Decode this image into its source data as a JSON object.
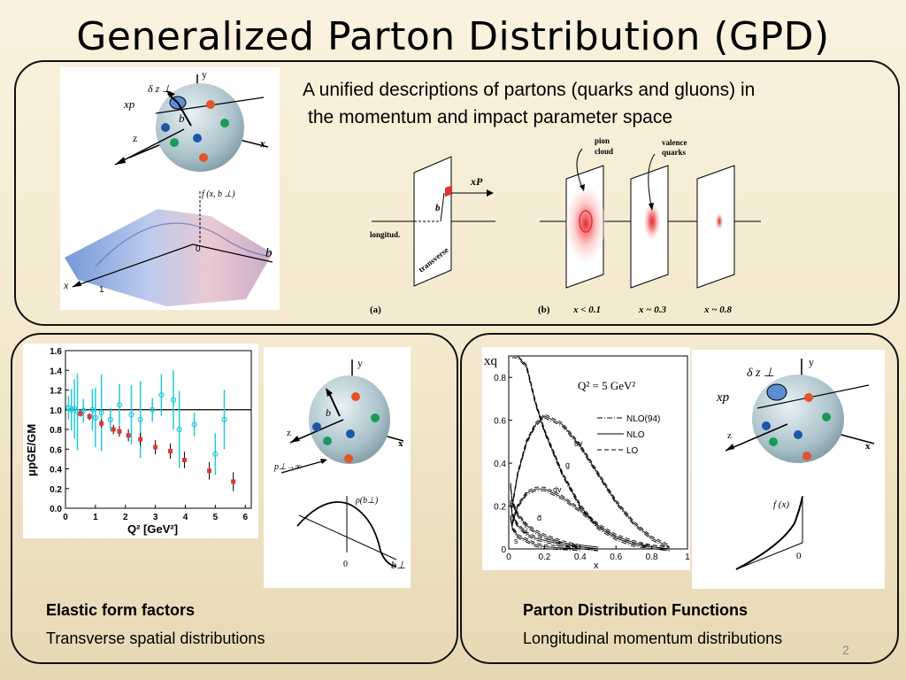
{
  "slide": {
    "title": "Generalized Parton Distribution (GPD)",
    "subtitle_line1": "A unified descriptions of partons (quarks and gluons) in",
    "subtitle_line2": "the momentum and impact parameter space",
    "page_number": "2"
  },
  "top_figure": {
    "sphere_labels": {
      "dz": "δ z ⊥",
      "xp": "xp",
      "b": "b",
      "z": "z",
      "y": "y",
      "x": "x"
    },
    "surface_labels": {
      "f": "f (x, b ⊥)",
      "b": "b",
      "zero": "0",
      "x": "x",
      "one": "1"
    },
    "panel_a": {
      "xP": "xP",
      "b": "b",
      "longitud": "longitud.",
      "transverse": "transverse",
      "label": "(a)"
    },
    "panel_b": {
      "pion_cloud_1": "pion",
      "pion_cloud_2": "cloud",
      "valence_1": "valence",
      "valence_2": "quarks",
      "label": "(b)",
      "x1": "x < 0.1",
      "x2": "x ~ 0.3",
      "x3": "x ~ 0.8"
    }
  },
  "form_factor_chart": {
    "ylabel": "μpGE/GM",
    "xlabel": "Q² [GeV²]",
    "y_ticks": [
      "1.6",
      "1.4",
      "1.2",
      "1.0",
      "0.8",
      "0.6",
      "0.4",
      "0.2",
      "0.0"
    ],
    "x_ticks": [
      "0",
      "1",
      "2",
      "3",
      "4",
      "5",
      "6"
    ]
  },
  "chart_data": [
    {
      "type": "scatter",
      "title": "",
      "xlabel": "Q² [GeV²]",
      "ylabel": "μpGE/GM",
      "xlim": [
        0,
        6.2
      ],
      "ylim": [
        0,
        1.6
      ],
      "series": [
        {
          "color": "#d93a3a",
          "x": [
            0.5,
            0.8,
            1.2,
            1.6,
            1.8,
            2.1,
            2.5,
            3.0,
            3.5,
            3.97,
            4.8,
            5.6
          ],
          "y": [
            0.96,
            0.93,
            0.86,
            0.8,
            0.78,
            0.74,
            0.7,
            0.62,
            0.58,
            0.49,
            0.38,
            0.27
          ]
        },
        {
          "color": "#22c9d9",
          "x": [
            0.1,
            0.2,
            0.3,
            0.4,
            0.6,
            0.9,
            1.0,
            1.2,
            1.5,
            1.8,
            2.2,
            2.5,
            2.9,
            3.2,
            3.6,
            3.8,
            4.3,
            5.0,
            5.3
          ],
          "y": [
            1.02,
            1.0,
            1.01,
            0.98,
            0.99,
            1.0,
            0.92,
            0.97,
            0.9,
            1.05,
            0.95,
            0.9,
            1.0,
            1.15,
            1.1,
            0.8,
            0.85,
            0.55,
            0.9
          ]
        }
      ]
    },
    {
      "type": "line",
      "title": "Q² = 5 GeV²",
      "xlabel": "x",
      "ylabel": "xq",
      "xlim": [
        0,
        1
      ],
      "ylim": [
        0,
        0.9
      ],
      "series": [
        {
          "name": "uv",
          "x": [
            0.02,
            0.05,
            0.1,
            0.15,
            0.2,
            0.3,
            0.4,
            0.5,
            0.6,
            0.7,
            0.8,
            0.9
          ],
          "y": [
            0.2,
            0.35,
            0.5,
            0.58,
            0.62,
            0.58,
            0.48,
            0.35,
            0.22,
            0.12,
            0.05,
            0.01
          ]
        },
        {
          "name": "g",
          "x": [
            0.02,
            0.05,
            0.1,
            0.15,
            0.2,
            0.3,
            0.4,
            0.5,
            0.6,
            0.7,
            0.8,
            0.9
          ],
          "y": [
            0.9,
            0.9,
            0.85,
            0.68,
            0.55,
            0.35,
            0.2,
            0.1,
            0.05,
            0.02,
            0.01,
            0.0
          ]
        },
        {
          "name": "dv",
          "x": [
            0.02,
            0.05,
            0.1,
            0.15,
            0.2,
            0.3,
            0.4,
            0.5,
            0.6,
            0.7,
            0.8,
            0.9
          ],
          "y": [
            0.12,
            0.2,
            0.26,
            0.28,
            0.28,
            0.24,
            0.18,
            0.11,
            0.06,
            0.03,
            0.01,
            0.0
          ]
        },
        {
          "name": "d̄",
          "x": [
            0.01,
            0.02,
            0.05,
            0.1,
            0.15,
            0.2,
            0.3,
            0.4,
            0.5
          ],
          "y": [
            0.3,
            0.22,
            0.16,
            0.11,
            0.08,
            0.06,
            0.03,
            0.01,
            0.0
          ]
        },
        {
          "name": "ū",
          "x": [
            0.01,
            0.02,
            0.05,
            0.1,
            0.15,
            0.2,
            0.3,
            0.4,
            0.5
          ],
          "y": [
            0.22,
            0.16,
            0.11,
            0.07,
            0.05,
            0.04,
            0.02,
            0.01,
            0.0
          ]
        },
        {
          "name": "s",
          "x": [
            0.01,
            0.02,
            0.05,
            0.1,
            0.15,
            0.2,
            0.3,
            0.4
          ],
          "y": [
            0.15,
            0.1,
            0.06,
            0.04,
            0.02,
            0.01,
            0.005,
            0.0
          ]
        }
      ],
      "legend": [
        "NLO(94)",
        "NLO",
        "LO"
      ]
    }
  ],
  "pdf_chart": {
    "title_q": "Q² = 5 GeV²",
    "ylabel": "xq",
    "xlabel": "x",
    "y_ticks": [
      "0.8",
      "0.6",
      "0.4",
      "0.2",
      "0"
    ],
    "x_ticks": [
      "0",
      "0.2",
      "0.4",
      "0.6",
      "0.8",
      "1"
    ],
    "legend": [
      "NLO(94)",
      "NLO",
      "LO"
    ],
    "curve_labels": [
      "uv",
      "g",
      "dv",
      "d̄",
      "ū",
      "s"
    ]
  },
  "left_sketch": {
    "y": "y",
    "x": "x",
    "z": "z",
    "b": "b",
    "pinf": "p⊥→∞",
    "rho": "ρ(b⊥)",
    "zero": "0",
    "bperp": "b⊥"
  },
  "right_sketch": {
    "dz": "δ z ⊥",
    "xp": "xp",
    "y": "y",
    "x": "x",
    "z": "z",
    "fx": "f (x)",
    "zero": "0"
  },
  "captions": {
    "left_bold": "Elastic form factors",
    "left_plain": "Transverse spatial distributions",
    "right_bold": "Parton Distribution Functions",
    "right_plain": "Longitudinal momentum distributions"
  },
  "colors": {
    "accent_red": "#d93a3a",
    "cyan": "#22c9d9",
    "sphere": "#a9c1c9"
  }
}
